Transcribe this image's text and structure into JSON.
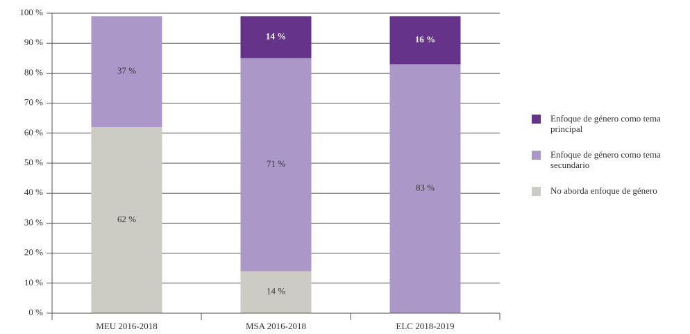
{
  "chart_data": {
    "type": "stacked_bar",
    "categories": [
      "MEU 2016-2018",
      "MSA 2016-2018",
      "ELC 2018-2019"
    ],
    "series": [
      {
        "name": "No aborda enfoque de género",
        "color": "#cccbc4",
        "values": [
          62,
          14,
          0
        ],
        "value_labels": [
          "62 %",
          "14 %",
          null
        ]
      },
      {
        "name": "Enfoque de género como tema secundario",
        "color": "#ac98c8",
        "values": [
          37,
          71,
          83
        ],
        "value_labels": [
          "37 %",
          "71 %",
          "83 %"
        ]
      },
      {
        "name": "Enfoque de género como tema principal",
        "color": "#65348a",
        "values": [
          0,
          14,
          16
        ],
        "value_labels": [
          null,
          "14 %",
          "16 %"
        ]
      }
    ],
    "ylim": [
      0,
      100
    ],
    "yticks": [
      {
        "value": 0,
        "label": "0 %"
      },
      {
        "value": 10,
        "label": "10 %"
      },
      {
        "value": 20,
        "label": "20 %"
      },
      {
        "value": 30,
        "label": "30 %"
      },
      {
        "value": 40,
        "label": "40 %"
      },
      {
        "value": 50,
        "label": "50 %"
      },
      {
        "value": 60,
        "label": "60 %"
      },
      {
        "value": 70,
        "label": "70 %"
      },
      {
        "value": 80,
        "label": "80 %"
      },
      {
        "value": 90,
        "label": "90 %"
      },
      {
        "value": 100,
        "label": "100 %"
      }
    ],
    "grid": true,
    "legend": "right"
  }
}
